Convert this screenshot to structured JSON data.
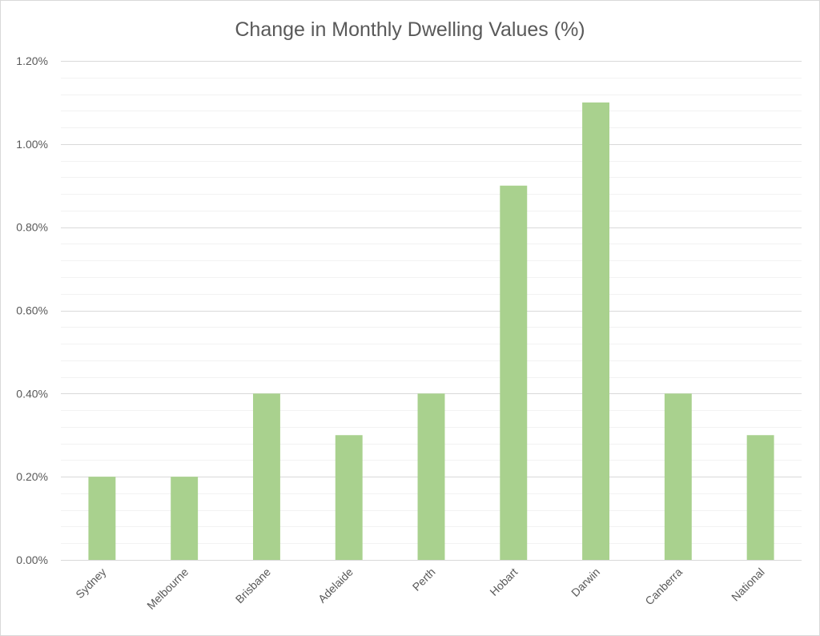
{
  "chart_data": {
    "type": "bar",
    "title": "Change in Monthly Dwelling Values (%)",
    "xlabel": "",
    "ylabel": "",
    "categories": [
      "Sydney",
      "Melbourne",
      "Brisbane",
      "Adelaide",
      "Perth",
      "Hobart",
      "Darwin",
      "Canberra",
      "National"
    ],
    "values": [
      0.2,
      0.2,
      0.4,
      0.3,
      0.4,
      0.9,
      1.1,
      0.4,
      0.3
    ],
    "ylim": [
      0,
      1.2
    ],
    "yticks": [
      "0.00%",
      "0.20%",
      "0.40%",
      "0.60%",
      "0.80%",
      "1.00%",
      "1.20%"
    ],
    "grid": true,
    "legend": "none",
    "colors": {
      "bar": "#a9d18e",
      "major_grid": "#d9d9d9",
      "minor_grid": "#f2f2f2",
      "axis": "#d9d9d9",
      "text": "#595959"
    }
  }
}
